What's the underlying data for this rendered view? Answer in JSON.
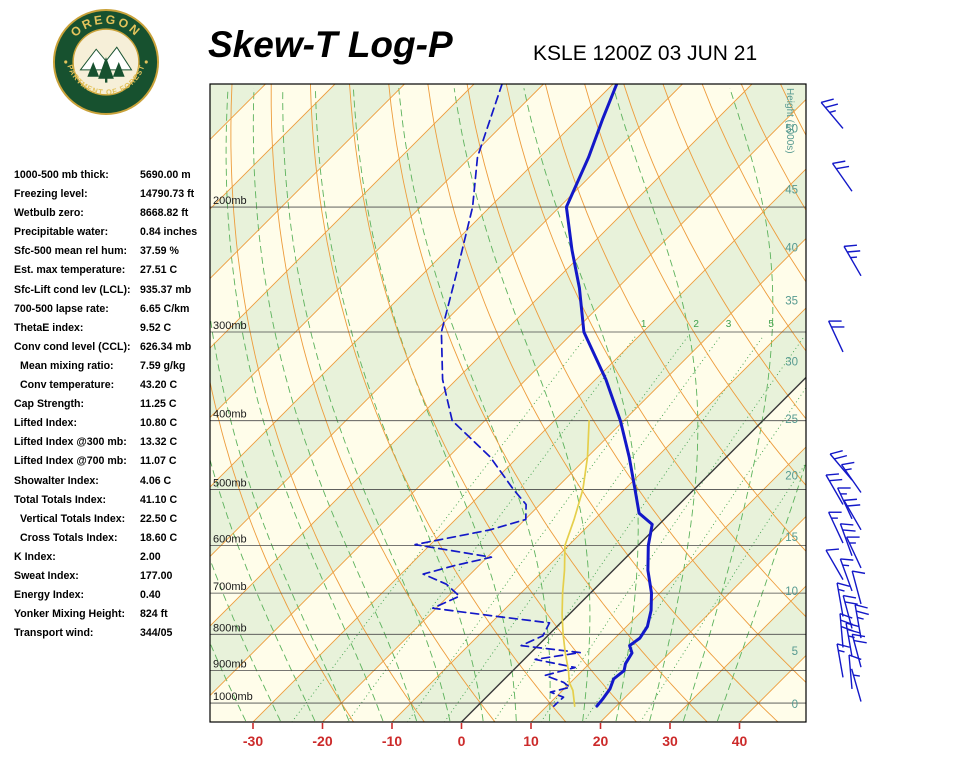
{
  "header": {
    "title": "Skew-T Log-P",
    "station_line": "KSLE 1200Z 03 JUN 21"
  },
  "logo": {
    "arc_top": "OREGON",
    "arc_bottom": "DEPARTMENT OF FORESTRY"
  },
  "stats": {
    "rows": [
      {
        "label": "1000-500 mb thick:",
        "value": "5690.00 m",
        "indent": false
      },
      {
        "label": "Freezing level:",
        "value": "14790.73 ft",
        "indent": false
      },
      {
        "label": "Wetbulb zero:",
        "value": "8668.82 ft",
        "indent": false
      },
      {
        "label": "Precipitable water:",
        "value": "0.84 inches",
        "indent": false
      },
      {
        "label": "Sfc-500 mean rel hum:",
        "value": "37.59 %",
        "indent": false
      },
      {
        "label": "Est. max temperature:",
        "value": "27.51 C",
        "indent": false
      },
      {
        "label": "Sfc-Lift cond lev (LCL):",
        "value": "935.37 mb",
        "indent": false
      },
      {
        "label": "700-500 lapse rate:",
        "value": "6.65 C/km",
        "indent": false
      },
      {
        "label": "ThetaE index:",
        "value": "9.52 C",
        "indent": false
      },
      {
        "label": "Conv cond level (CCL):",
        "value": "626.34 mb",
        "indent": false
      },
      {
        "label": "Mean mixing ratio:",
        "value": "7.59 g/kg",
        "indent": true
      },
      {
        "label": "Conv temperature:",
        "value": "43.20 C",
        "indent": true
      },
      {
        "label": "Cap Strength:",
        "value": "11.25 C",
        "indent": false
      },
      {
        "label": "Lifted Index:",
        "value": "10.80 C",
        "indent": false
      },
      {
        "label": "Lifted Index @300 mb:",
        "value": "13.32 C",
        "indent": false
      },
      {
        "label": "Lifted Index @700 mb:",
        "value": "11.07 C",
        "indent": false
      },
      {
        "label": "Showalter Index:",
        "value": "4.06 C",
        "indent": false
      },
      {
        "label": "Total Totals Index:",
        "value": "41.10 C",
        "indent": false
      },
      {
        "label": "Vertical Totals Index:",
        "value": "22.50 C",
        "indent": true
      },
      {
        "label": "Cross Totals Index:",
        "value": "18.60 C",
        "indent": true
      },
      {
        "label": "K Index:",
        "value": "2.00",
        "indent": false
      },
      {
        "label": "Sweat Index:",
        "value": "177.00",
        "indent": false
      },
      {
        "label": "Energy Index:",
        "value": "0.40",
        "indent": false
      },
      {
        "label": "Yonker Mixing Height:",
        "value": "824 ft",
        "indent": false
      },
      {
        "label": "Transport wind:",
        "value": "344/05",
        "indent": false
      }
    ]
  },
  "chart_data": {
    "type": "skewt",
    "title": "Skew-T Log-P",
    "station": "KSLE 1200Z 03 JUN 21",
    "x_axis": {
      "ticks_c": [
        -30,
        -20,
        -10,
        0,
        10,
        20,
        30,
        40
      ]
    },
    "pressure_ticks_mb": [
      200,
      300,
      400,
      500,
      600,
      700,
      800,
      900,
      1000
    ],
    "height_axis": {
      "title": "Height (1000s)",
      "ticks": [
        {
          "kft": 0,
          "p": 1003
        },
        {
          "kft": 5,
          "p": 845
        },
        {
          "kft": 10,
          "p": 695
        },
        {
          "kft": 15,
          "p": 583
        },
        {
          "kft": 20,
          "p": 478
        },
        {
          "kft": 25,
          "p": 398
        },
        {
          "kft": 30,
          "p": 330
        },
        {
          "kft": 35,
          "p": 271
        },
        {
          "kft": 40,
          "p": 228
        },
        {
          "kft": 45,
          "p": 189
        },
        {
          "kft": 50,
          "p": 155
        }
      ]
    },
    "mixing_ratio_lines_gkg": [
      0.5,
      1,
      2,
      3,
      5,
      8,
      12,
      20
    ],
    "mixing_ratio_labels": [
      1,
      2,
      3,
      5
    ],
    "isotherm_step_c": 10,
    "temperature_profile": [
      [
        134,
        -69.5
      ],
      [
        150,
        -66.5
      ],
      [
        170,
        -63
      ],
      [
        200,
        -59
      ],
      [
        230,
        -52
      ],
      [
        260,
        -45.5
      ],
      [
        300,
        -38.5
      ],
      [
        350,
        -28.5
      ],
      [
        400,
        -20.5
      ],
      [
        450,
        -14
      ],
      [
        500,
        -8.5
      ],
      [
        540,
        -4.5
      ],
      [
        560,
        -1
      ],
      [
        600,
        1.5
      ],
      [
        650,
        5
      ],
      [
        700,
        8.8
      ],
      [
        740,
        11.2
      ],
      [
        780,
        13
      ],
      [
        810,
        13.6
      ],
      [
        830,
        13.2
      ],
      [
        850,
        14.6
      ],
      [
        880,
        15.2
      ],
      [
        900,
        16
      ],
      [
        925,
        15.7
      ],
      [
        955,
        16.6
      ],
      [
        985,
        17
      ],
      [
        1010,
        17.2
      ]
    ],
    "dewpoint_profile": [
      [
        134,
        -86
      ],
      [
        170,
        -79
      ],
      [
        200,
        -72.5
      ],
      [
        250,
        -65
      ],
      [
        300,
        -59
      ],
      [
        350,
        -52
      ],
      [
        400,
        -44.7
      ],
      [
        450,
        -34
      ],
      [
        500,
        -26
      ],
      [
        525,
        -22
      ],
      [
        551,
        -19.9
      ],
      [
        570,
        -23.5
      ],
      [
        598,
        -32.2
      ],
      [
        623,
        -19.4
      ],
      [
        640,
        -23.5
      ],
      [
        658,
        -26.8
      ],
      [
        680,
        -22
      ],
      [
        707,
        -18.4
      ],
      [
        735,
        -20.5
      ],
      [
        755,
        -10
      ],
      [
        771,
        -1.6
      ],
      [
        804,
        -0.7
      ],
      [
        830,
        -2.4
      ],
      [
        849,
        7.1
      ],
      [
        868,
        1.6
      ],
      [
        891,
        8.5
      ],
      [
        914,
        5.3
      ],
      [
        935,
        9
      ],
      [
        950,
        10.6
      ],
      [
        965,
        8.5
      ],
      [
        981,
        11.1
      ],
      [
        1010,
        11
      ]
    ],
    "parcel_path": [
      [
        400,
        -25
      ],
      [
        450,
        -20
      ],
      [
        500,
        -16
      ],
      [
        550,
        -13
      ],
      [
        600,
        -10.5
      ],
      [
        650,
        -7
      ],
      [
        700,
        -4
      ],
      [
        750,
        -1
      ],
      [
        800,
        2
      ],
      [
        850,
        5
      ],
      [
        900,
        8
      ],
      [
        935,
        9.8
      ],
      [
        960,
        11.5
      ],
      [
        1010,
        14
      ]
    ],
    "wind_barbs_right": [
      {
        "p": 155,
        "dir": 320,
        "spd": 25
      },
      {
        "p": 190,
        "dir": 325,
        "spd": 20
      },
      {
        "p": 250,
        "dir": 330,
        "spd": 25
      },
      {
        "p": 320,
        "dir": 335,
        "spd": 20
      },
      {
        "p": 485,
        "dir": 320,
        "spd": 20
      },
      {
        "p": 505,
        "dir": 325,
        "spd": 15
      },
      {
        "p": 525,
        "dir": 330,
        "spd": 20
      },
      {
        "p": 550,
        "dir": 335,
        "spd": 15
      },
      {
        "p": 570,
        "dir": 330,
        "spd": 20
      },
      {
        "p": 595,
        "dir": 335,
        "spd": 15
      },
      {
        "p": 620,
        "dir": 340,
        "spd": 20
      },
      {
        "p": 645,
        "dir": 335,
        "spd": 15
      },
      {
        "p": 670,
        "dir": 330,
        "spd": 10
      },
      {
        "p": 695,
        "dir": 340,
        "spd": 15
      },
      {
        "p": 725,
        "dir": 345,
        "spd": 10
      },
      {
        "p": 755,
        "dir": 350,
        "spd": 15
      },
      {
        "p": 785,
        "dir": 345,
        "spd": 20
      },
      {
        "p": 810,
        "dir": 350,
        "spd": 25
      },
      {
        "p": 835,
        "dir": 355,
        "spd": 30
      },
      {
        "p": 860,
        "dir": 350,
        "spd": 25
      },
      {
        "p": 890,
        "dir": 345,
        "spd": 20
      },
      {
        "p": 920,
        "dir": 350,
        "spd": 15
      },
      {
        "p": 955,
        "dir": 355,
        "spd": 10
      },
      {
        "p": 995,
        "dir": 344,
        "spd": 5
      }
    ],
    "colors": {
      "isotherm": "#ed9c3c",
      "zero_isotherm": "#3a3a3a",
      "adiabat_dry": "#ed9c3c",
      "adiabat_moist": "#5cb25c",
      "mixing_ratio": "#3fa04c",
      "temperature_trace": "#1318c8",
      "dewpoint_trace": "#1318c8",
      "parcel_trace": "#e5cf4b",
      "axis_temp": "#cc2a2a",
      "height_scale": "#569a90",
      "band_cream": "#fffdea",
      "band_green": "#e8f2da",
      "isobar": "#4a4a4a",
      "wind_barb": "#1318c8"
    }
  }
}
